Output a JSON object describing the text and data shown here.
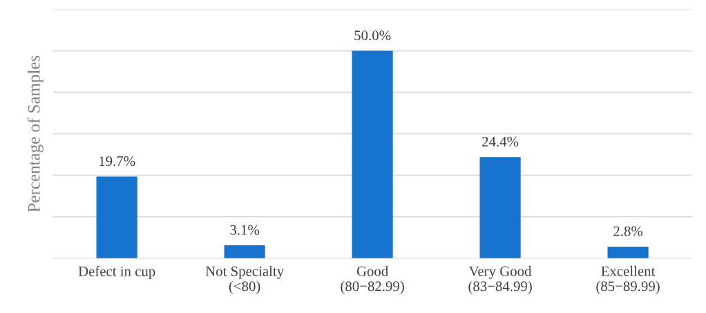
{
  "chart_data": {
    "type": "bar",
    "ylabel": "Percentage of Samples",
    "categories": [
      "Defect in cup",
      "Not Specialty\n(<80)",
      "Good\n(80−82.99)",
      "Very Good\n(83−84.99)",
      "Excellent\n(85−89.99)"
    ],
    "values": [
      19.7,
      3.1,
      50.0,
      24.4,
      2.8
    ],
    "value_labels": [
      "19.7%",
      "3.1%",
      "50.0%",
      "24.4%",
      "2.8%"
    ],
    "color": "#1873cc",
    "ylim": [
      0,
      60
    ],
    "yticks": [
      {
        "value": 0,
        "label": null
      },
      {
        "value": 10,
        "label": null
      },
      {
        "value": 20,
        "label": null
      },
      {
        "value": 30,
        "label": null
      },
      {
        "value": 40,
        "label": null
      },
      {
        "value": 50,
        "label": null
      },
      {
        "value": 60,
        "label": null
      }
    ],
    "grid": "y",
    "tick_labels": "x"
  }
}
